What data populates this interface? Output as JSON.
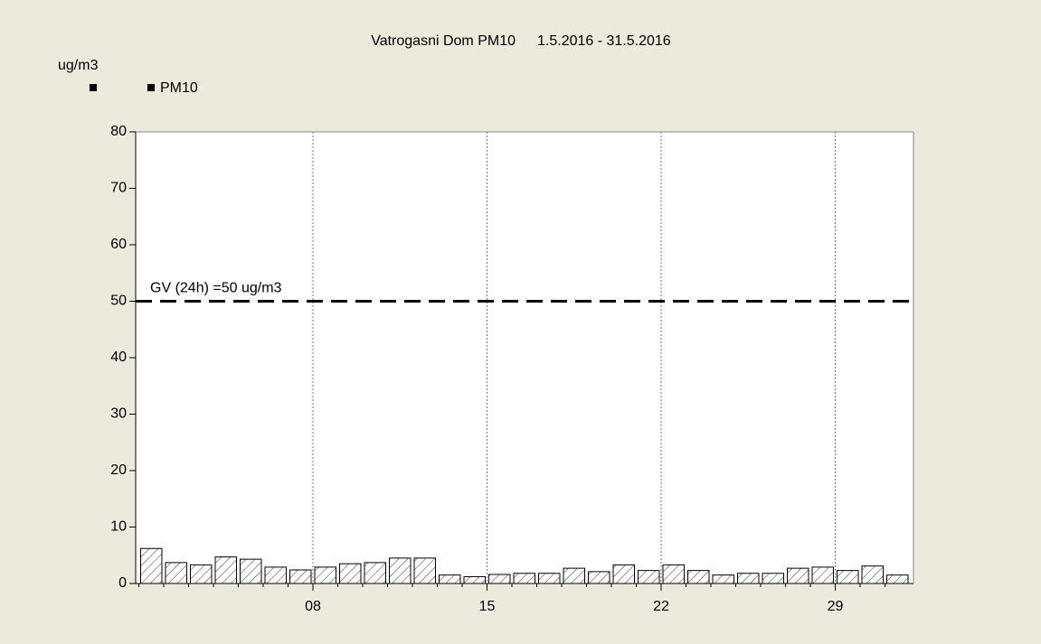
{
  "chart_data": {
    "type": "bar",
    "title": "Vatrogasni Dom PM10",
    "subtitle": "1.5.2016 - 31.5.2016",
    "y_label": "ug/m3",
    "categories": [
      null,
      null,
      null,
      null,
      null,
      null,
      null,
      "08",
      null,
      null,
      null,
      null,
      null,
      null,
      "15",
      null,
      null,
      null,
      null,
      null,
      null,
      "22",
      null,
      null,
      null,
      null,
      null,
      null,
      "29",
      null,
      null
    ],
    "series": [
      {
        "name": "PM10",
        "color": "#000000",
        "values": [
          6.2,
          3.7,
          3.3,
          4.7,
          4.3,
          2.9,
          2.4,
          2.9,
          3.5,
          3.7,
          4.5,
          4.5,
          1.5,
          1.2,
          1.6,
          1.8,
          1.8,
          2.7,
          2.1,
          3.3,
          2.3,
          3.3,
          2.3,
          1.5,
          1.8,
          1.8,
          2.7,
          2.9,
          2.3,
          3.1,
          1.5
        ]
      }
    ],
    "reference_line": {
      "value": 50,
      "label": "GV (24h) =50 ug/m3"
    },
    "ylim": [
      0,
      80
    ],
    "yticks": [
      0,
      10,
      20,
      30,
      40,
      50,
      60,
      70,
      80
    ],
    "grid": true
  }
}
